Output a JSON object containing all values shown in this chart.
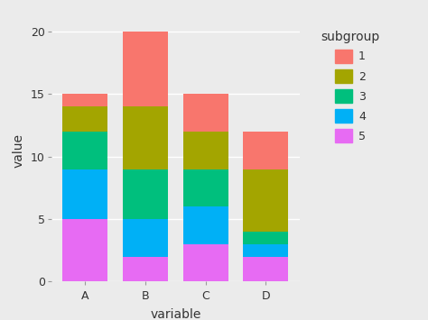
{
  "categories": [
    "A",
    "B",
    "C",
    "D"
  ],
  "subgroups": [
    "5",
    "4",
    "3",
    "2",
    "1"
  ],
  "values": {
    "5": [
      5,
      2,
      3,
      2
    ],
    "4": [
      4,
      3,
      3,
      1
    ],
    "3": [
      3,
      4,
      3,
      1
    ],
    "2": [
      2,
      5,
      3,
      5
    ],
    "1": [
      1,
      6,
      3,
      3
    ]
  },
  "colors": {
    "1": "#F8766D",
    "2": "#A3A500",
    "3": "#00BF7D",
    "4": "#00B0F6",
    "5": "#E76BF3"
  },
  "xlabel": "variable",
  "ylabel": "value",
  "legend_title": "subgroup",
  "ylim": [
    0,
    21
  ],
  "yticks": [
    0,
    5,
    10,
    15,
    20
  ],
  "background_color": "#EBEBEB",
  "panel_background": "#EBEBEB",
  "grid_color": "#FFFFFF",
  "bar_width": 0.75
}
